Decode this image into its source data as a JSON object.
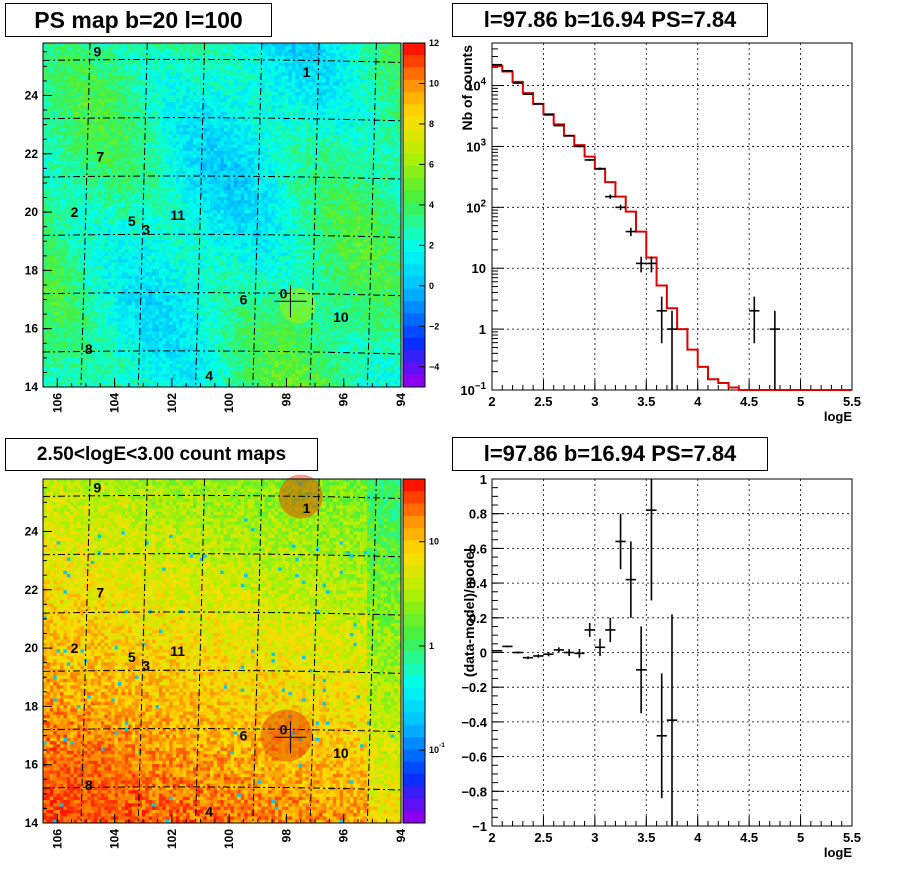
{
  "chart_data": [
    {
      "type": "heatmap",
      "title": "PS map b=20 l=100",
      "x_ticks": [
        "106",
        "104",
        "102",
        "100",
        "98",
        "96",
        "94"
      ],
      "y_ticks": [
        "14",
        "16",
        "18",
        "20",
        "22",
        "24"
      ],
      "xlim": [
        106.5,
        94
      ],
      "ylim": [
        14,
        25.8
      ],
      "colorbar_ticks": [
        "12",
        "10",
        "8",
        "6",
        "4",
        "2",
        "0",
        "-2",
        "-4"
      ],
      "colorbar_range": [
        -5,
        12
      ],
      "colorbar_scale": "linear",
      "grid": true,
      "sources": [
        {
          "label": "9",
          "l": 104.6,
          "b": 25.5
        },
        {
          "label": "1",
          "l": 97.3,
          "b": 24.8
        },
        {
          "label": "7",
          "l": 104.5,
          "b": 21.9
        },
        {
          "label": "2",
          "l": 105.4,
          "b": 20.0
        },
        {
          "label": "5",
          "l": 103.4,
          "b": 19.7
        },
        {
          "label": "11",
          "l": 101.8,
          "b": 19.9
        },
        {
          "label": "3",
          "l": 102.9,
          "b": 19.4
        },
        {
          "label": "0",
          "l": 98.1,
          "b": 17.2
        },
        {
          "label": "6",
          "l": 99.5,
          "b": 17.0
        },
        {
          "label": "10",
          "l": 96.1,
          "b": 16.4
        },
        {
          "label": "8",
          "l": 104.9,
          "b": 15.3
        },
        {
          "label": "4",
          "l": 100.7,
          "b": 14.4
        }
      ],
      "marker": {
        "l": 97.86,
        "b": 16.94
      }
    },
    {
      "type": "line",
      "title": "l=97.86 b=16.94 PS=7.84",
      "xlabel": "logE",
      "ylabel": "Nb of counts",
      "xlim": [
        2,
        5.5
      ],
      "ylim": [
        0.1,
        50000
      ],
      "y_scale": "log",
      "grid": true,
      "x_ticks": [
        "2",
        "2.5",
        "3",
        "3.5",
        "4",
        "4.5",
        "5",
        "5.5"
      ],
      "y_ticks": [
        {
          "v": 0.1,
          "b": "10",
          "e": "−1"
        },
        {
          "v": 1,
          "b": "1",
          "e": ""
        },
        {
          "v": 10,
          "b": "10",
          "e": ""
        },
        {
          "v": 100,
          "b": "10",
          "e": "2"
        },
        {
          "v": 1000,
          "b": "10",
          "e": "3"
        },
        {
          "v": 10000,
          "b": "10",
          "e": "4"
        }
      ],
      "model_step": {
        "edges": [
          2.0,
          2.1,
          2.2,
          2.3,
          2.4,
          2.5,
          2.6,
          2.7,
          2.8,
          2.9,
          3.0,
          3.1,
          3.2,
          3.3,
          3.4,
          3.5,
          3.6,
          3.7,
          3.8,
          3.9,
          4.0,
          4.1,
          4.2,
          4.3,
          4.4,
          4.5,
          4.6,
          4.7,
          4.8,
          4.9,
          5.0,
          5.1,
          5.2,
          5.3,
          5.4,
          5.5
        ],
        "values": [
          21000,
          17000,
          11500,
          7500,
          5000,
          3400,
          2300,
          1500,
          1050,
          680,
          430,
          260,
          150,
          85,
          40,
          15,
          5.2,
          2.2,
          1.0,
          0.46,
          0.24,
          0.15,
          0.13,
          0.11,
          0.1,
          0.1,
          0.1,
          0.1,
          0.1,
          0.1,
          0.1,
          0.1,
          0.1,
          0.1,
          0.1
        ]
      },
      "data_points": [
        {
          "x": 2.05,
          "y": 22000
        },
        {
          "x": 2.15,
          "y": 17500
        },
        {
          "x": 2.25,
          "y": 11000
        },
        {
          "x": 2.35,
          "y": 7200
        },
        {
          "x": 2.45,
          "y": 5000
        },
        {
          "x": 2.55,
          "y": 3300
        },
        {
          "x": 2.65,
          "y": 2200
        },
        {
          "x": 2.75,
          "y": 1500
        },
        {
          "x": 2.85,
          "y": 1000
        },
        {
          "x": 2.95,
          "y": 600
        },
        {
          "x": 3.05,
          "y": 430
        },
        {
          "x": 3.15,
          "y": 150
        },
        {
          "x": 3.25,
          "y": 100
        },
        {
          "x": 3.35,
          "y": 40
        },
        {
          "x": 3.45,
          "y": 12
        },
        {
          "x": 3.55,
          "y": 12
        },
        {
          "x": 3.65,
          "y": 2
        },
        {
          "x": 3.75,
          "y": 1
        },
        {
          "x": 4.55,
          "y": 2
        },
        {
          "x": 4.75,
          "y": 1
        }
      ]
    },
    {
      "type": "heatmap",
      "title": "2.50<logE<3.00 count maps",
      "x_ticks": [
        "106",
        "104",
        "102",
        "100",
        "98",
        "96",
        "94"
      ],
      "y_ticks": [
        "14",
        "16",
        "18",
        "20",
        "22",
        "24"
      ],
      "xlim": [
        106.5,
        94
      ],
      "ylim": [
        14,
        25.8
      ],
      "colorbar_scale": "log",
      "colorbar_range": [
        0.02,
        40
      ],
      "colorbar_ticks": [
        {
          "v": 10,
          "b": "10",
          "e": ""
        },
        {
          "v": 1,
          "b": "1",
          "e": ""
        },
        {
          "v": 0.1,
          "b": "10",
          "e": "-1"
        }
      ],
      "grid": true,
      "sources": [
        {
          "label": "9",
          "l": 104.6,
          "b": 25.5
        },
        {
          "label": "1",
          "l": 97.3,
          "b": 24.8
        },
        {
          "label": "7",
          "l": 104.5,
          "b": 21.9
        },
        {
          "label": "2",
          "l": 105.4,
          "b": 20.0
        },
        {
          "label": "5",
          "l": 103.4,
          "b": 19.7
        },
        {
          "label": "11",
          "l": 101.8,
          "b": 19.9
        },
        {
          "label": "3",
          "l": 102.9,
          "b": 19.4
        },
        {
          "label": "0",
          "l": 98.1,
          "b": 17.2
        },
        {
          "label": "6",
          "l": 99.5,
          "b": 17.0
        },
        {
          "label": "10",
          "l": 96.1,
          "b": 16.4
        },
        {
          "label": "8",
          "l": 104.9,
          "b": 15.3
        },
        {
          "label": "4",
          "l": 100.7,
          "b": 14.4
        }
      ],
      "marker": {
        "l": 97.86,
        "b": 16.94
      }
    },
    {
      "type": "scatter",
      "title": "l=97.86 b=16.94 PS=7.84",
      "xlabel": "logE",
      "ylabel": "(data-model)/model",
      "xlim": [
        2,
        5.5
      ],
      "ylim": [
        -1,
        1
      ],
      "grid": true,
      "x_ticks": [
        "2",
        "2.5",
        "3",
        "3.5",
        "4",
        "4.5",
        "5",
        "5.5"
      ],
      "y_ticks": [
        "1",
        "0.8",
        "0.6",
        "0.4",
        "0.2",
        "0",
        "−0.2",
        "−0.4",
        "−0.6",
        "−0.8",
        "−1"
      ],
      "points": [
        {
          "x": 2.05,
          "y": 0.01,
          "err": 0.004
        },
        {
          "x": 2.15,
          "y": 0.035,
          "err": 0.005
        },
        {
          "x": 2.25,
          "y": 0.0,
          "err": 0.006
        },
        {
          "x": 2.35,
          "y": -0.03,
          "err": 0.008
        },
        {
          "x": 2.45,
          "y": -0.02,
          "err": 0.01
        },
        {
          "x": 2.55,
          "y": -0.01,
          "err": 0.012
        },
        {
          "x": 2.65,
          "y": 0.015,
          "err": 0.015
        },
        {
          "x": 2.75,
          "y": 0.0,
          "err": 0.02
        },
        {
          "x": 2.85,
          "y": -0.005,
          "err": 0.025
        },
        {
          "x": 2.95,
          "y": 0.13,
          "err": 0.04
        },
        {
          "x": 3.05,
          "y": 0.03,
          "err": 0.05
        },
        {
          "x": 3.15,
          "y": 0.13,
          "err": 0.07
        },
        {
          "x": 3.25,
          "y": 0.64,
          "err": 0.16
        },
        {
          "x": 3.35,
          "y": 0.42,
          "err": 0.22
        },
        {
          "x": 3.45,
          "y": -0.1,
          "err": 0.25
        },
        {
          "x": 3.55,
          "y": 0.82,
          "err": 0.52
        },
        {
          "x": 3.65,
          "y": -0.48,
          "err": 0.36
        },
        {
          "x": 3.75,
          "y": -0.39,
          "err": 0.61
        }
      ]
    }
  ]
}
